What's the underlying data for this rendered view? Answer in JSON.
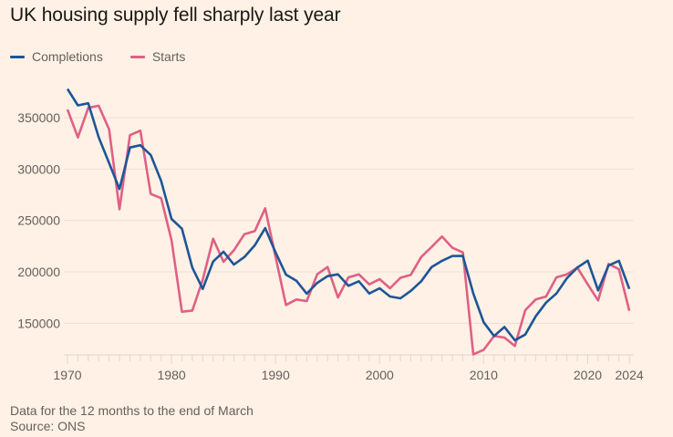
{
  "chart_data": {
    "type": "line",
    "title": "UK housing supply fell sharply last year",
    "xlabel": "",
    "ylabel": "",
    "x": [
      1970,
      1971,
      1972,
      1973,
      1974,
      1975,
      1976,
      1977,
      1978,
      1979,
      1980,
      1981,
      1982,
      1983,
      1984,
      1985,
      1986,
      1987,
      1988,
      1989,
      1990,
      1991,
      1992,
      1993,
      1994,
      1995,
      1996,
      1997,
      1998,
      1999,
      2000,
      2001,
      2002,
      2003,
      2004,
      2005,
      2006,
      2007,
      2008,
      2009,
      2010,
      2011,
      2012,
      2013,
      2014,
      2015,
      2016,
      2017,
      2018,
      2019,
      2020,
      2021,
      2022,
      2023,
      2024
    ],
    "series": [
      {
        "name": "Completions",
        "color": "#1F5597",
        "values": [
          378000,
          362000,
          364000,
          331000,
          306000,
          280600,
          321000,
          323200,
          313700,
          288500,
          251500,
          242000,
          204200,
          183400,
          210000,
          219600,
          207100,
          214500,
          225800,
          242600,
          218900,
          197300,
          191400,
          178800,
          189300,
          195800,
          197600,
          186400,
          190900,
          179000,
          184000,
          176000,
          174300,
          181500,
          190900,
          204700,
          210700,
          215400,
          215400,
          179000,
          150900,
          137600,
          146400,
          133400,
          139000,
          156700,
          170100,
          179000,
          193800,
          204200,
          210900,
          182000,
          206200,
          210700,
          183400
        ]
      },
      {
        "name": "Starts",
        "color": "#E06085",
        "values": [
          358000,
          330800,
          359600,
          361600,
          338800,
          261000,
          333000,
          337400,
          275800,
          271700,
          230800,
          161200,
          162400,
          192300,
          232200,
          209800,
          221000,
          236700,
          239700,
          261900,
          214500,
          167800,
          173100,
          171600,
          197600,
          204700,
          175100,
          194700,
          197600,
          187800,
          192900,
          184000,
          194200,
          197200,
          214500,
          224200,
          234400,
          223400,
          218900,
          119800,
          124200,
          137600,
          136100,
          127900,
          162700,
          173100,
          176000,
          194700,
          197600,
          204200,
          187800,
          172200,
          207700,
          202700,
          162100
        ]
      }
    ],
    "y_ticks": [
      150000,
      200000,
      250000,
      300000,
      350000
    ],
    "y_tick_labels": [
      "150000",
      "200000",
      "250000",
      "300000",
      "350000"
    ],
    "x_ticks": [
      1970,
      1980,
      1990,
      2000,
      2010,
      2020,
      2024
    ],
    "x_tick_labels": [
      "1970",
      "1980",
      "1990",
      "2000",
      "2010",
      "2020",
      "2024"
    ],
    "xlim": [
      1970,
      2024
    ],
    "ylim": [
      116000,
      390000
    ],
    "grid": true,
    "legend_position": "top-left"
  },
  "legend": {
    "items": [
      {
        "label": "Completions",
        "color": "#1F5597"
      },
      {
        "label": "Starts",
        "color": "#E06085"
      }
    ]
  },
  "footnote": {
    "note": "Data for the 12 months to the end of March",
    "source": "Source: ONS"
  }
}
